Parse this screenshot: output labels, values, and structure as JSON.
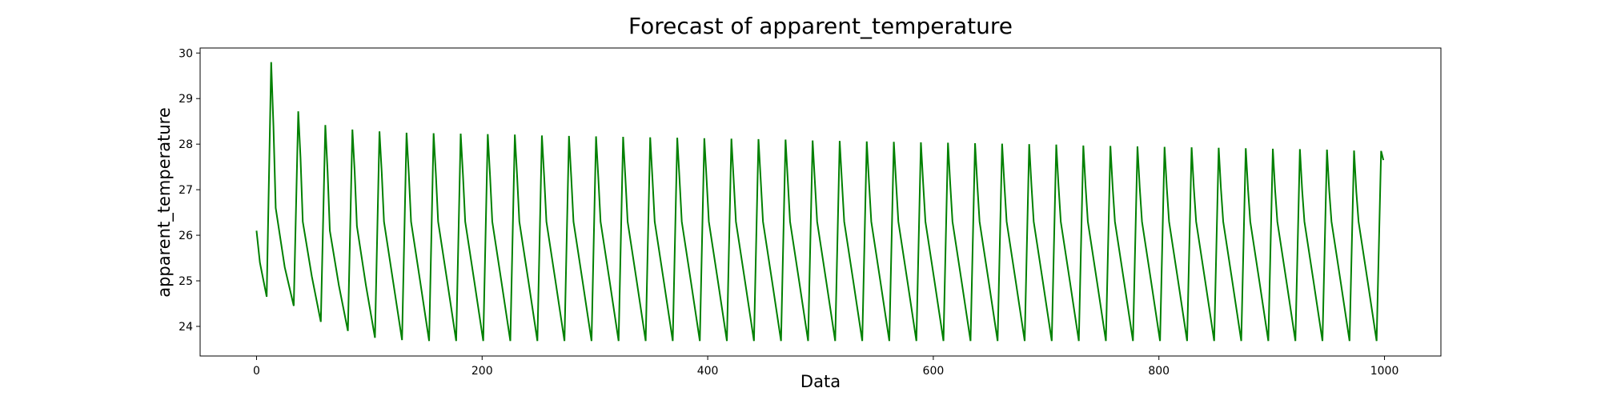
{
  "chart_data": {
    "type": "line",
    "title": "Forecast of apparent_temperature",
    "xlabel": "Data",
    "ylabel": "apparent_temperature",
    "color": "#008000",
    "xlim": [
      -50,
      1050
    ],
    "ylim": [
      23.35,
      30.11
    ],
    "xticks": [
      0,
      200,
      400,
      600,
      800,
      1000
    ],
    "yticks": [
      24,
      25,
      26,
      27,
      28,
      29,
      30
    ],
    "grid": false,
    "x": [
      0,
      3,
      9,
      13,
      15,
      17,
      25,
      33,
      37,
      39,
      41,
      49,
      57,
      61,
      63,
      65,
      73,
      81,
      85,
      87,
      89,
      97,
      105,
      109,
      111,
      113,
      121,
      129,
      133,
      135,
      137,
      145,
      153,
      157,
      159,
      161,
      169,
      177,
      181,
      183,
      185,
      193,
      201,
      205,
      207,
      209,
      217,
      225,
      229,
      231,
      233,
      241,
      249,
      253,
      255,
      257,
      265,
      273,
      277,
      279,
      281,
      289,
      297,
      301,
      303,
      305,
      313,
      321,
      325,
      327,
      329,
      337,
      345,
      349,
      351,
      353,
      361,
      369,
      373,
      375,
      377,
      385,
      393,
      397,
      399,
      401,
      409,
      417,
      421,
      423,
      425,
      433,
      441,
      445,
      447,
      449,
      457,
      465,
      469,
      471,
      473,
      481,
      489,
      493,
      495,
      497,
      505,
      513,
      517,
      519,
      521,
      529,
      537,
      541,
      543,
      545,
      553,
      561,
      565,
      567,
      569,
      577,
      585,
      589,
      591,
      593,
      601,
      609,
      613,
      615,
      617,
      625,
      633,
      637,
      639,
      641,
      649,
      657,
      661,
      663,
      665,
      673,
      681,
      685,
      687,
      689,
      697,
      705,
      709,
      711,
      713,
      721,
      729,
      733,
      735,
      737,
      745,
      753,
      757,
      759,
      761,
      769,
      777,
      781,
      783,
      785,
      793,
      801,
      805,
      807,
      809,
      817,
      825,
      829,
      831,
      833,
      841,
      849,
      853,
      855,
      857,
      865,
      873,
      877,
      879,
      881,
      889,
      897,
      901,
      903,
      905,
      913,
      921,
      925,
      927,
      929,
      937,
      945,
      949,
      951,
      953,
      961,
      969,
      973,
      975,
      977,
      985,
      993,
      997,
      999
    ],
    "values": [
      26.1,
      25.4,
      24.65,
      29.8,
      28.4,
      26.6,
      25.3,
      24.45,
      28.72,
      27.7,
      26.3,
      25.1,
      24.1,
      28.42,
      27.4,
      26.1,
      24.9,
      23.9,
      28.32,
      27.4,
      26.2,
      24.9,
      23.75,
      28.28,
      27.38,
      26.3,
      25.0,
      23.7,
      28.25,
      27.35,
      26.3,
      25.0,
      23.68,
      28.24,
      27.34,
      26.3,
      25.0,
      23.68,
      28.23,
      27.33,
      26.3,
      25.0,
      23.68,
      28.22,
      27.32,
      26.3,
      25.0,
      23.68,
      28.21,
      27.31,
      26.3,
      25.0,
      23.68,
      28.19,
      27.29,
      26.3,
      25.0,
      23.68,
      28.18,
      27.28,
      26.3,
      25.0,
      23.68,
      28.17,
      27.27,
      26.3,
      25.0,
      23.68,
      28.16,
      27.26,
      26.3,
      25.0,
      23.68,
      28.15,
      27.25,
      26.3,
      25.0,
      23.68,
      28.14,
      27.24,
      26.3,
      25.0,
      23.68,
      28.13,
      27.23,
      26.3,
      25.0,
      23.68,
      28.12,
      27.22,
      26.3,
      25.0,
      23.68,
      28.11,
      27.21,
      26.3,
      25.0,
      23.68,
      28.1,
      27.2,
      26.3,
      25.0,
      23.68,
      28.08,
      27.18,
      26.3,
      25.0,
      23.68,
      28.07,
      27.17,
      26.3,
      25.0,
      23.68,
      28.06,
      27.16,
      26.3,
      25.0,
      23.68,
      28.05,
      27.15,
      26.3,
      25.0,
      23.68,
      28.04,
      27.14,
      26.3,
      25.0,
      23.68,
      28.03,
      27.13,
      26.3,
      25.0,
      23.68,
      28.02,
      27.12,
      26.3,
      25.0,
      23.68,
      28.01,
      27.11,
      26.3,
      25.0,
      23.68,
      28.0,
      27.1,
      26.3,
      25.0,
      23.68,
      27.99,
      27.09,
      26.3,
      25.0,
      23.68,
      27.97,
      27.07,
      26.3,
      25.0,
      23.68,
      27.96,
      27.06,
      26.3,
      25.0,
      23.68,
      27.95,
      27.05,
      26.3,
      25.0,
      23.68,
      27.94,
      27.04,
      26.3,
      25.0,
      23.68,
      27.93,
      27.03,
      26.3,
      25.0,
      23.68,
      27.92,
      27.02,
      26.3,
      25.0,
      23.68,
      27.91,
      27.01,
      26.3,
      25.0,
      23.68,
      27.9,
      27.0,
      26.3,
      25.0,
      23.68,
      27.89,
      26.99,
      26.3,
      25.0,
      23.68,
      27.88,
      26.98,
      26.3,
      25.0,
      23.68,
      27.86,
      26.96,
      26.3,
      25.0,
      23.68,
      27.85,
      27.65
    ]
  }
}
